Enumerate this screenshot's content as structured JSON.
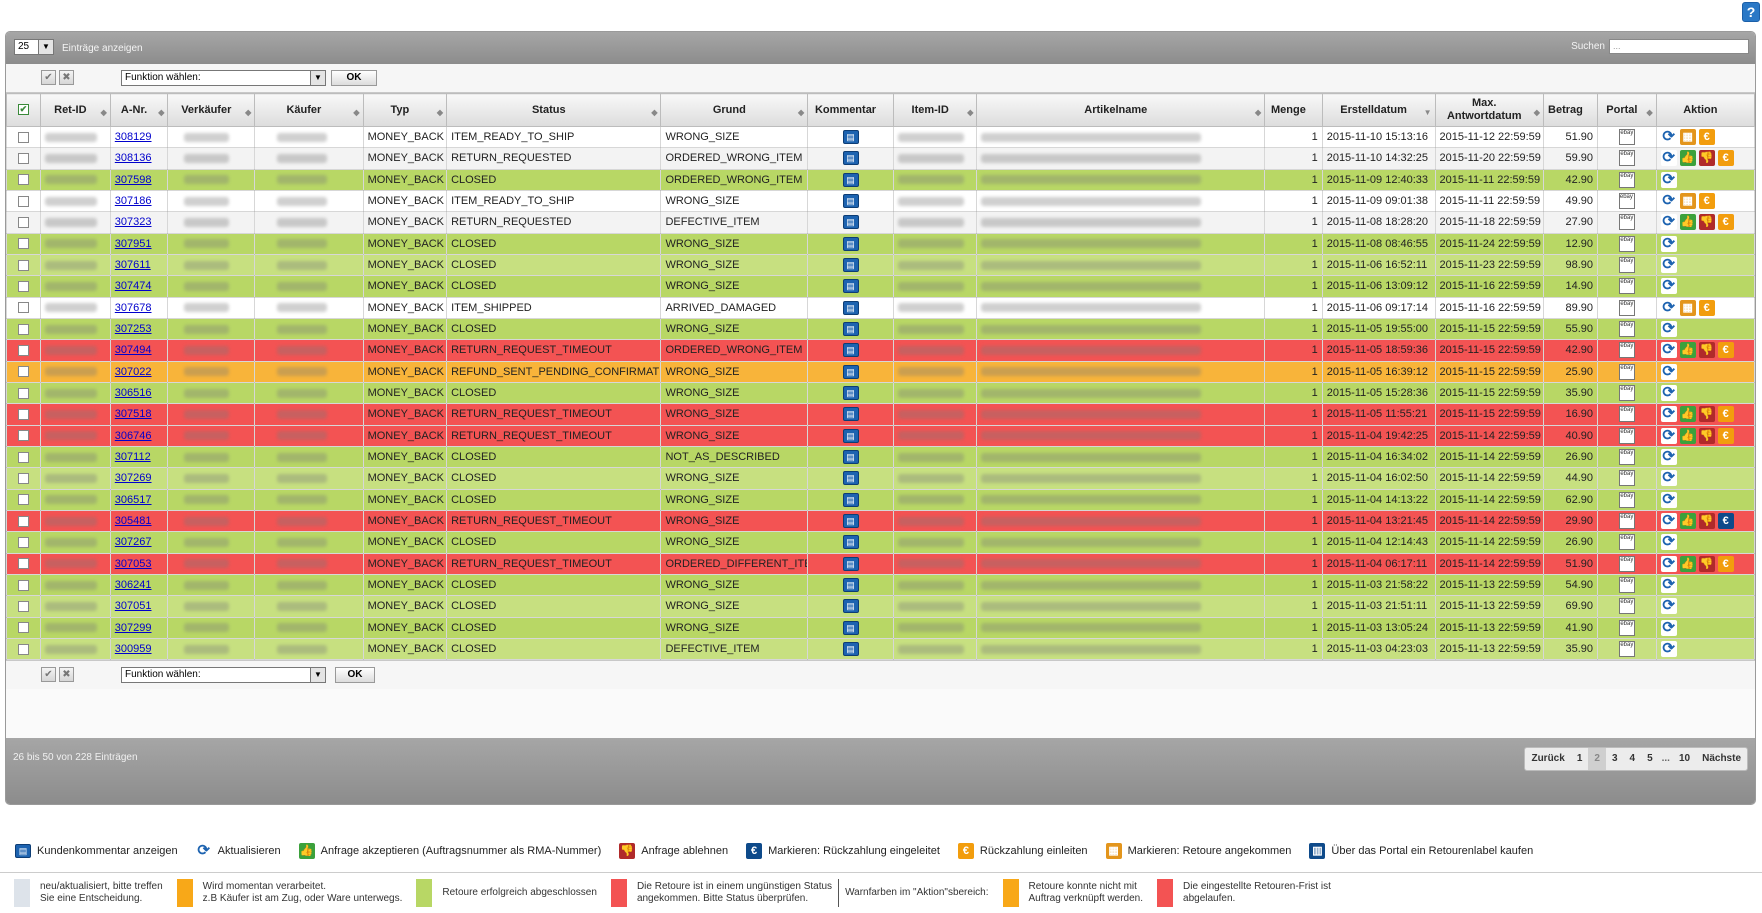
{
  "toolbar": {
    "length_value": "25",
    "length_label": "Einträge anzeigen",
    "search_label": "Suchen",
    "search_value": "...",
    "function_placeholder": "Funktion wählen:",
    "ok_label": "OK",
    "help_label": "?"
  },
  "columns": [
    "Ret-ID",
    "A-Nr.",
    "Verkäufer",
    "Käufer",
    "Typ",
    "Status",
    "Grund",
    "Kommentar",
    "Item-ID",
    "Artikelname",
    "Menge",
    "Erstelldatum",
    "Max. Antwortdatum",
    "Betrag",
    "Portal",
    "Aktion"
  ],
  "rows": [
    {
      "anr": "308129",
      "typ": "MONEY_BACK",
      "status": "ITEM_READY_TO_SHIP",
      "grund": "WRONG_SIZE",
      "menge": "1",
      "erstell": "2015-11-10 15:13:16",
      "max": "2015-11-12 22:59:59",
      "betrag": "51.90",
      "color": "white",
      "portal": "ebay",
      "actions": [
        "refresh",
        "label",
        "pay"
      ]
    },
    {
      "anr": "308136",
      "typ": "MONEY_BACK",
      "status": "RETURN_REQUESTED",
      "grund": "ORDERED_WRONG_ITEM",
      "menge": "1",
      "erstell": "2015-11-10 14:32:25",
      "max": "2015-11-20 22:59:59",
      "betrag": "59.90",
      "color": "white2",
      "portal": "ebay",
      "actions": [
        "refresh",
        "accept",
        "reject",
        "pay"
      ]
    },
    {
      "anr": "307598",
      "typ": "MONEY_BACK",
      "status": "CLOSED",
      "grund": "ORDERED_WRONG_ITEM",
      "menge": "1",
      "erstell": "2015-11-09 12:40:33",
      "max": "2015-11-11 22:59:59",
      "betrag": "42.90",
      "color": "green",
      "portal": "ebay",
      "actions": [
        "refresh"
      ]
    },
    {
      "anr": "307186",
      "typ": "MONEY_BACK",
      "status": "ITEM_READY_TO_SHIP",
      "grund": "WRONG_SIZE",
      "menge": "1",
      "erstell": "2015-11-09 09:01:38",
      "max": "2015-11-11 22:59:59",
      "betrag": "49.90",
      "color": "white",
      "portal": "ebay plus",
      "actions": [
        "refresh",
        "label",
        "pay"
      ]
    },
    {
      "anr": "307323",
      "typ": "MONEY_BACK",
      "status": "RETURN_REQUESTED",
      "grund": "DEFECTIVE_ITEM",
      "menge": "1",
      "erstell": "2015-11-08 18:28:20",
      "max": "2015-11-18 22:59:59",
      "betrag": "27.90",
      "color": "white2",
      "portal": "ebay",
      "actions": [
        "refresh",
        "accept",
        "reject",
        "pay"
      ]
    },
    {
      "anr": "307951",
      "typ": "MONEY_BACK",
      "status": "CLOSED",
      "grund": "WRONG_SIZE",
      "menge": "1",
      "erstell": "2015-11-08 08:46:55",
      "max": "2015-11-24 22:59:59",
      "betrag": "12.90",
      "color": "green",
      "portal": "ebay",
      "actions": [
        "refresh"
      ]
    },
    {
      "anr": "307611",
      "typ": "MONEY_BACK",
      "status": "CLOSED",
      "grund": "WRONG_SIZE",
      "menge": "1",
      "erstell": "2015-11-06 16:52:11",
      "max": "2015-11-23 22:59:59",
      "betrag": "98.90",
      "color": "green2",
      "portal": "ebay",
      "actions": [
        "refresh"
      ]
    },
    {
      "anr": "307474",
      "typ": "MONEY_BACK",
      "status": "CLOSED",
      "grund": "WRONG_SIZE",
      "menge": "1",
      "erstell": "2015-11-06 13:09:12",
      "max": "2015-11-16 22:59:59",
      "betrag": "14.90",
      "color": "green",
      "portal": "ebay",
      "actions": [
        "refresh"
      ]
    },
    {
      "anr": "307678",
      "typ": "MONEY_BACK",
      "status": "ITEM_SHIPPED",
      "grund": "ARRIVED_DAMAGED",
      "menge": "1",
      "erstell": "2015-11-06 09:17:14",
      "max": "2015-11-16 22:59:59",
      "betrag": "89.90",
      "color": "white",
      "portal": "ebay",
      "actions": [
        "refresh",
        "label",
        "pay"
      ]
    },
    {
      "anr": "307253",
      "typ": "MONEY_BACK",
      "status": "CLOSED",
      "grund": "WRONG_SIZE",
      "menge": "1",
      "erstell": "2015-11-05 19:55:00",
      "max": "2015-11-15 22:59:59",
      "betrag": "55.90",
      "color": "green",
      "portal": "ebay",
      "actions": [
        "refresh"
      ]
    },
    {
      "anr": "307494",
      "typ": "MONEY_BACK",
      "status": "RETURN_REQUEST_TIMEOUT",
      "grund": "ORDERED_WRONG_ITEM",
      "menge": "1",
      "erstell": "2015-11-05 18:59:36",
      "max": "2015-11-15 22:59:59",
      "betrag": "42.90",
      "color": "red",
      "portal": "ebay",
      "actions": [
        "refresh",
        "accept",
        "reject",
        "pay"
      ]
    },
    {
      "anr": "307022",
      "typ": "MONEY_BACK",
      "status": "REFUND_SENT_PENDING_CONFIRMATION",
      "grund": "WRONG_SIZE",
      "menge": "1",
      "erstell": "2015-11-05 16:39:12",
      "max": "2015-11-15 22:59:59",
      "betrag": "25.90",
      "color": "orange",
      "portal": "ebay",
      "actions": [
        "refresh"
      ]
    },
    {
      "anr": "306516",
      "typ": "MONEY_BACK",
      "status": "CLOSED",
      "grund": "WRONG_SIZE",
      "menge": "1",
      "erstell": "2015-11-05 15:28:36",
      "max": "2015-11-15 22:59:59",
      "betrag": "35.90",
      "color": "green",
      "portal": "ebay",
      "actions": [
        "refresh"
      ]
    },
    {
      "anr": "307518",
      "typ": "MONEY_BACK",
      "status": "RETURN_REQUEST_TIMEOUT",
      "grund": "WRONG_SIZE",
      "menge": "1",
      "erstell": "2015-11-05 11:55:21",
      "max": "2015-11-15 22:59:59",
      "betrag": "16.90",
      "color": "red",
      "portal": "ebay",
      "actions": [
        "refresh",
        "accept",
        "reject",
        "pay"
      ]
    },
    {
      "anr": "306746",
      "typ": "MONEY_BACK",
      "status": "RETURN_REQUEST_TIMEOUT",
      "grund": "WRONG_SIZE",
      "menge": "1",
      "erstell": "2015-11-04 19:42:25",
      "max": "2015-11-14 22:59:59",
      "betrag": "40.90",
      "color": "red",
      "portal": "ebay",
      "actions": [
        "refresh",
        "accept",
        "reject",
        "pay"
      ]
    },
    {
      "anr": "307112",
      "typ": "MONEY_BACK",
      "status": "CLOSED",
      "grund": "NOT_AS_DESCRIBED",
      "menge": "1",
      "erstell": "2015-11-04 16:34:02",
      "max": "2015-11-14 22:59:59",
      "betrag": "26.90",
      "color": "green",
      "portal": "ebay",
      "actions": [
        "refresh"
      ]
    },
    {
      "anr": "307269",
      "typ": "MONEY_BACK",
      "status": "CLOSED",
      "grund": "WRONG_SIZE",
      "menge": "1",
      "erstell": "2015-11-04 16:02:50",
      "max": "2015-11-14 22:59:59",
      "betrag": "44.90",
      "color": "green2",
      "portal": "ebay",
      "actions": [
        "refresh"
      ]
    },
    {
      "anr": "306517",
      "typ": "MONEY_BACK",
      "status": "CLOSED",
      "grund": "WRONG_SIZE",
      "menge": "1",
      "erstell": "2015-11-04 14:13:22",
      "max": "2015-11-14 22:59:59",
      "betrag": "62.90",
      "color": "green",
      "portal": "ebay",
      "actions": [
        "refresh"
      ]
    },
    {
      "anr": "305481",
      "typ": "MONEY_BACK",
      "status": "RETURN_REQUEST_TIMEOUT",
      "grund": "WRONG_SIZE",
      "menge": "1",
      "erstell": "2015-11-04 13:21:45",
      "max": "2015-11-14 22:59:59",
      "betrag": "29.90",
      "color": "red",
      "portal": "ebay",
      "actions": [
        "refresh",
        "accept",
        "reject",
        "euro"
      ]
    },
    {
      "anr": "307267",
      "typ": "MONEY_BACK",
      "status": "CLOSED",
      "grund": "WRONG_SIZE",
      "menge": "1",
      "erstell": "2015-11-04 12:14:43",
      "max": "2015-11-14 22:59:59",
      "betrag": "26.90",
      "color": "green",
      "portal": "ebay",
      "actions": [
        "refresh"
      ]
    },
    {
      "anr": "307053",
      "typ": "MONEY_BACK",
      "status": "RETURN_REQUEST_TIMEOUT",
      "grund": "ORDERED_DIFFERENT_ITEM",
      "menge": "1",
      "erstell": "2015-11-04 06:17:11",
      "max": "2015-11-14 22:59:59",
      "betrag": "51.90",
      "color": "red",
      "portal": "ebay",
      "actions": [
        "refresh",
        "accept",
        "reject",
        "pay"
      ]
    },
    {
      "anr": "306241",
      "typ": "MONEY_BACK",
      "status": "CLOSED",
      "grund": "WRONG_SIZE",
      "menge": "1",
      "erstell": "2015-11-03 21:58:22",
      "max": "2015-11-13 22:59:59",
      "betrag": "54.90",
      "color": "green",
      "portal": "ebay",
      "actions": [
        "refresh"
      ]
    },
    {
      "anr": "307051",
      "typ": "MONEY_BACK",
      "status": "CLOSED",
      "grund": "WRONG_SIZE",
      "menge": "1",
      "erstell": "2015-11-03 21:51:11",
      "max": "2015-11-13 22:59:59",
      "betrag": "69.90",
      "color": "green2",
      "portal": "ebay",
      "actions": [
        "refresh"
      ]
    },
    {
      "anr": "307299",
      "typ": "MONEY_BACK",
      "status": "CLOSED",
      "grund": "WRONG_SIZE",
      "menge": "1",
      "erstell": "2015-11-03 13:05:24",
      "max": "2015-11-13 22:59:59",
      "betrag": "41.90",
      "color": "green",
      "portal": "ebay",
      "actions": [
        "refresh"
      ]
    },
    {
      "anr": "300959",
      "typ": "MONEY_BACK",
      "status": "CLOSED",
      "grund": "DEFECTIVE_ITEM",
      "menge": "1",
      "erstell": "2015-11-03 04:23:03",
      "max": "2015-11-13 22:59:59",
      "betrag": "35.90",
      "color": "green2",
      "portal": "ebay",
      "actions": [
        "refresh"
      ]
    }
  ],
  "footer": {
    "info": "26 bis 50 von 228 Einträgen",
    "prev": "Zurück",
    "pages": [
      "1",
      "2",
      "3",
      "4",
      "5",
      "...",
      "10"
    ],
    "current": "2",
    "next": "Nächste"
  },
  "legend_icons": [
    {
      "icon": "comment-icon",
      "label": "Kundenkommentar anzeigen"
    },
    {
      "icon": "refresh-icon",
      "label": "Aktualisieren"
    },
    {
      "icon": "thumbs-up-icon",
      "label": "Anfrage akzeptieren (Auftragsnummer als RMA-Nummer)"
    },
    {
      "icon": "thumbs-down-icon",
      "label": "Anfrage ablehnen"
    },
    {
      "icon": "euro-blue-icon",
      "label": "Markieren: Rückzahlung eingeleitet"
    },
    {
      "icon": "euro-orange-icon",
      "label": "Rückzahlung einleiten"
    },
    {
      "icon": "box-icon",
      "label": "Markieren: Retoure angekommen"
    },
    {
      "icon": "book-icon",
      "label": "Über das Portal ein Retourenlabel kaufen"
    }
  ],
  "legend_colors": [
    {
      "color": "#dde3ea",
      "text": [
        "neu/aktualisiert, bitte treffen",
        "Sie eine Entscheidung."
      ]
    },
    {
      "color": "#f8a818",
      "text": [
        "Wird momentan verarbeitet.",
        "z.B Käufer ist am Zug, oder Ware unterwegs."
      ]
    },
    {
      "color": "#b8d765",
      "text": [
        "Retoure erfolgreich abgeschlossen"
      ]
    },
    {
      "color": "#f35353",
      "text": [
        "Die Retoure ist in einem ungünstigen Status",
        "angekommen. Bitte Status überprüfen."
      ]
    },
    {
      "color": "",
      "text": [
        "Warnfarben im \"Aktion\"sbereich:"
      ]
    },
    {
      "color": "#f8a818",
      "text": [
        "Retoure konnte nicht mit",
        "Auftrag verknüpft werden."
      ]
    },
    {
      "color": "#f35353",
      "text": [
        "Die eingestellte Retouren-Frist ist",
        "abgelaufen."
      ]
    }
  ]
}
